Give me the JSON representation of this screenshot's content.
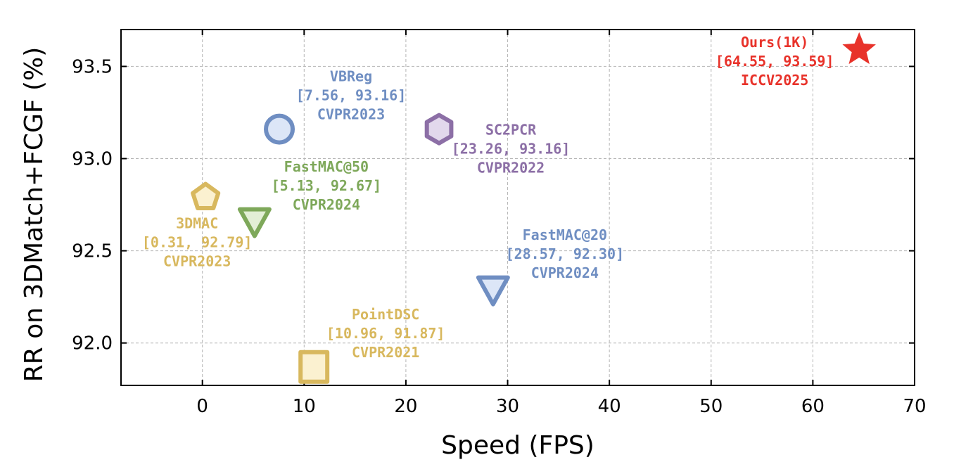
{
  "chart_data": {
    "type": "scatter",
    "title": "",
    "xlabel": "Speed (FPS)",
    "ylabel": "RR on 3DMatch+FCGF (%)",
    "xlim": [
      -8,
      70
    ],
    "ylim": [
      91.77,
      93.7
    ],
    "grid": true,
    "xticks": [
      0,
      10,
      20,
      30,
      40,
      50,
      60,
      70
    ],
    "yticks": [
      92.0,
      92.5,
      93.0,
      93.5
    ],
    "xtick_labels": [
      "0",
      "10",
      "20",
      "30",
      "40",
      "50",
      "60",
      "70"
    ],
    "ytick_labels": [
      "92.0",
      "92.5",
      "93.0",
      "93.5"
    ],
    "points": [
      {
        "id": "vbreg",
        "x": 7.56,
        "y": 93.16,
        "marker": "circle",
        "color": "#6f8ec2",
        "fill": "#dce6f7",
        "lines": [
          "VBReg",
          "[7.56, 93.16]",
          "CVPR2023"
        ],
        "label_anchor": "above-right"
      },
      {
        "id": "sc2pcr",
        "x": 23.26,
        "y": 93.16,
        "marker": "hexagon",
        "color": "#8c6fa6",
        "fill": "#e2d8ec",
        "lines": [
          "SC2PCR",
          "[23.26, 93.16]",
          "CVPR2022"
        ],
        "label_anchor": "below-right"
      },
      {
        "id": "fastmac50",
        "x": 5.13,
        "y": 92.67,
        "marker": "triangle-down",
        "color": "#7ea85a",
        "fill": "#e3efd6",
        "lines": [
          "FastMAC@50",
          "[5.13, 92.67]",
          "CVPR2024"
        ],
        "label_anchor": "above-right"
      },
      {
        "id": "3dmac",
        "x": 0.31,
        "y": 92.79,
        "marker": "pentagon",
        "color": "#d8b85e",
        "fill": "#fbf1d0",
        "lines": [
          "3DMAC",
          "[0.31, 92.79]",
          "CVPR2023"
        ],
        "label_anchor": "below"
      },
      {
        "id": "fastmac20",
        "x": 28.57,
        "y": 92.3,
        "marker": "triangle-down",
        "color": "#6f8ec2",
        "fill": "#dce6f7",
        "lines": [
          "FastMAC@20",
          "[28.57, 92.30]",
          "CVPR2024"
        ],
        "label_anchor": "above-right"
      },
      {
        "id": "pointdsc",
        "x": 10.96,
        "y": 91.87,
        "marker": "square",
        "color": "#d8b85e",
        "fill": "#fbf1d0",
        "lines": [
          "PointDSC",
          "[10.96, 91.87]",
          "CVPR2021"
        ],
        "label_anchor": "above-right"
      },
      {
        "id": "ours",
        "x": 64.55,
        "y": 93.59,
        "marker": "star",
        "color": "#e8322a",
        "fill": "#e8322a",
        "lines": [
          "Ours(1K)",
          "[64.55, 93.59]",
          "ICCV2025"
        ],
        "label_anchor": "below-left"
      }
    ]
  }
}
